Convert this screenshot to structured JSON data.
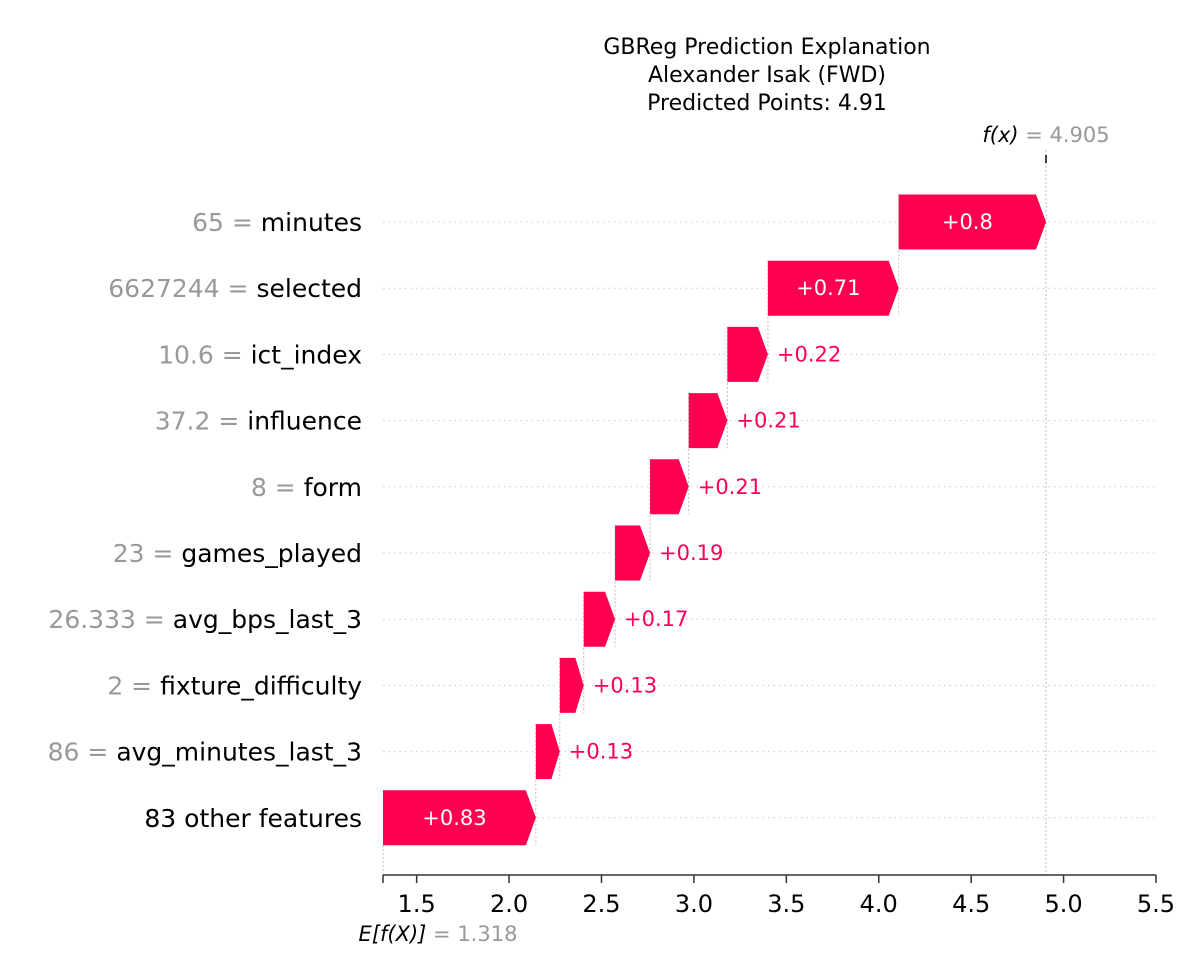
{
  "chart_data": {
    "type": "waterfall",
    "title_lines": [
      "GBReg Prediction Explanation",
      "Alexander Isak (FWD)",
      "Predicted Points: 4.91"
    ],
    "base_value": 1.318,
    "base_value_label": "1.318",
    "base_expression": "E[f(X)]",
    "output_value": 4.905,
    "output_value_label": "4.905",
    "output_expression": "f(x)",
    "features": [
      {
        "value": "65",
        "name": "minutes",
        "contribution": 0.8,
        "label": "+0.8"
      },
      {
        "value": "6627244",
        "name": "selected",
        "contribution": 0.71,
        "label": "+0.71"
      },
      {
        "value": "10.6",
        "name": "ict_index",
        "contribution": 0.22,
        "label": "+0.22"
      },
      {
        "value": "37.2",
        "name": "influence",
        "contribution": 0.21,
        "label": "+0.21"
      },
      {
        "value": "8",
        "name": "form",
        "contribution": 0.21,
        "label": "+0.21"
      },
      {
        "value": "23",
        "name": "games_played",
        "contribution": 0.19,
        "label": "+0.19"
      },
      {
        "value": "26.333",
        "name": "avg_bps_last_3",
        "contribution": 0.17,
        "label": "+0.17"
      },
      {
        "value": "2",
        "name": "fixture_difficulty",
        "contribution": 0.13,
        "label": "+0.13"
      },
      {
        "value": "86",
        "name": "avg_minutes_last_3",
        "contribution": 0.13,
        "label": "+0.13"
      },
      {
        "value": "",
        "name": "83 other features",
        "contribution": 0.83,
        "label": "+0.83"
      }
    ],
    "x_ticks": [
      "1.5",
      "2.0",
      "2.5",
      "3.0",
      "3.5",
      "4.0",
      "4.5",
      "5.0",
      "5.5"
    ],
    "xlim": [
      1.318,
      5.5
    ],
    "grid": "horizontal-dotted",
    "colors": {
      "positive": "#ff0051",
      "muted_text": "#999999",
      "grid": "#cccccc",
      "axis": "#333333"
    }
  }
}
